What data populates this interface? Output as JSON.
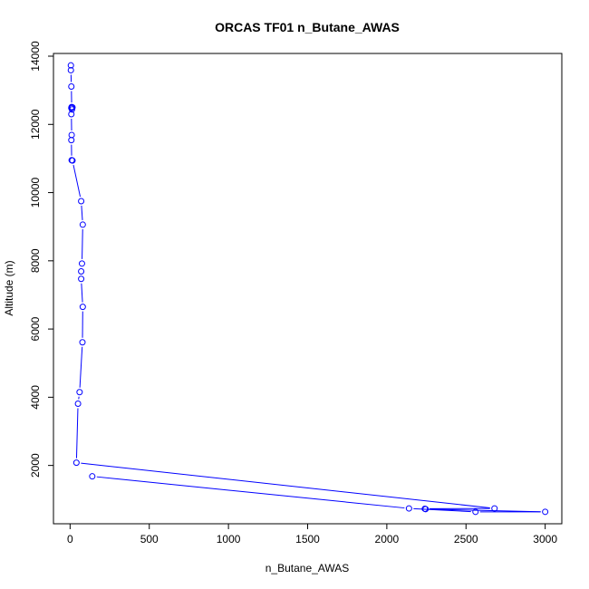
{
  "chart_data": {
    "type": "scatter",
    "title": "ORCAS TF01 n_Butane_AWAS",
    "xlabel": "n_Butane_AWAS",
    "ylabel": "Altitude (m)",
    "xlim": [
      -105,
      3105
    ],
    "ylim": [
      290,
      14080
    ],
    "xticks": [
      0,
      500,
      1000,
      1500,
      2000,
      2500,
      3000
    ],
    "yticks": [
      2000,
      4000,
      6000,
      8000,
      10000,
      12000,
      14000
    ],
    "grid": false,
    "series": [
      {
        "color": "#0000ff",
        "marker": "open-circle",
        "connected": true,
        "points": [
          {
            "x": 5,
            "y": 13730
          },
          {
            "x": 5,
            "y": 13590
          },
          {
            "x": 8,
            "y": 13110
          },
          {
            "x": 10,
            "y": 12510
          },
          {
            "x": 15,
            "y": 12500
          },
          {
            "x": 8,
            "y": 12480
          },
          {
            "x": 12,
            "y": 12440
          },
          {
            "x": 8,
            "y": 12300
          },
          {
            "x": 10,
            "y": 11690
          },
          {
            "x": 8,
            "y": 11540
          },
          {
            "x": 10,
            "y": 10950
          },
          {
            "x": 15,
            "y": 10940
          },
          {
            "x": 70,
            "y": 9750
          },
          {
            "x": 80,
            "y": 9060
          },
          {
            "x": 75,
            "y": 7920
          },
          {
            "x": 70,
            "y": 7690
          },
          {
            "x": 70,
            "y": 7470
          },
          {
            "x": 80,
            "y": 6650
          },
          {
            "x": 78,
            "y": 5610
          },
          {
            "x": 60,
            "y": 4150
          },
          {
            "x": 50,
            "y": 3810
          },
          {
            "x": 40,
            "y": 2080
          },
          {
            "x": 2680,
            "y": 740
          },
          {
            "x": 2240,
            "y": 730
          },
          {
            "x": 2245,
            "y": 720
          },
          {
            "x": 3000,
            "y": 640
          },
          {
            "x": 2560,
            "y": 640
          },
          {
            "x": 2140,
            "y": 740
          },
          {
            "x": 140,
            "y": 1680
          }
        ]
      }
    ]
  }
}
